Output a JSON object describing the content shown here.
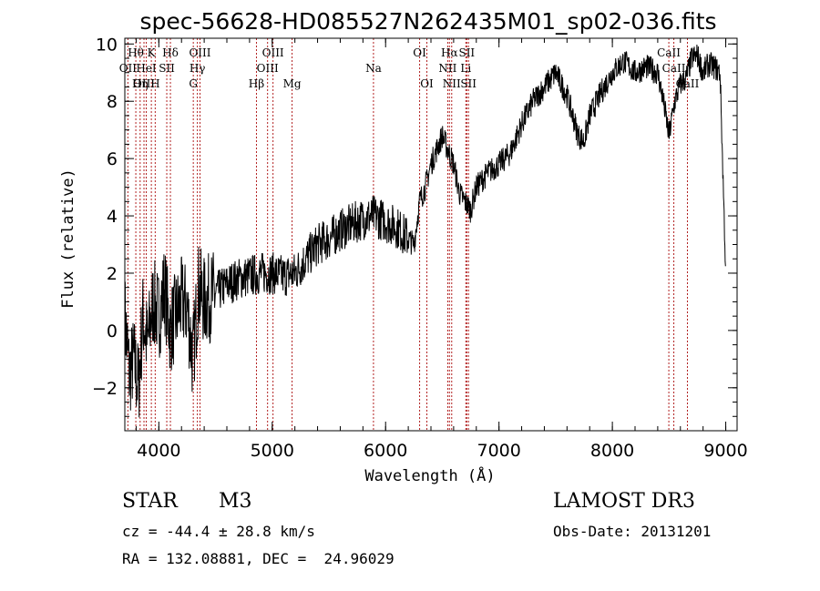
{
  "chart_data": {
    "type": "line",
    "title": "spec-56628-HD085527N262435M01_sp02-036.fits",
    "xlabel": "Wavelength (Å)",
    "ylabel": "Flux (relative)",
    "xlim": [
      3700,
      9100
    ],
    "ylim": [
      -3.5,
      10.2
    ],
    "xticks": [
      4000,
      5000,
      6000,
      7000,
      8000,
      9000
    ],
    "yticks": [
      -2,
      0,
      2,
      4,
      6,
      8,
      10
    ],
    "grid": false,
    "series": [
      {
        "x": [
          3700,
          3740,
          3780,
          3820,
          3860,
          3900,
          3950,
          4000,
          4050,
          4100,
          4150,
          4200,
          4250,
          4300,
          4350,
          4400,
          4500,
          4600,
          4700,
          4800,
          4900,
          5000,
          5100,
          5200,
          5300,
          5400,
          5500,
          5600,
          5700,
          5800,
          5900,
          6000,
          6100,
          6200,
          6250,
          6300,
          6350,
          6400,
          6450,
          6500,
          6550,
          6600,
          6650,
          6700,
          6750,
          6800,
          6900,
          7000,
          7100,
          7200,
          7300,
          7400,
          7500,
          7600,
          7650,
          7700,
          7750,
          7800,
          7900,
          8000,
          8100,
          8200,
          8300,
          8400,
          8450,
          8500,
          8550,
          8600,
          8650,
          8700,
          8750,
          8800,
          8850,
          8900,
          8950,
          9000
        ],
        "y": [
          0.5,
          -1.5,
          -1.0,
          -2.0,
          0.5,
          -0.5,
          1.0,
          0.5,
          1.5,
          0.0,
          0.5,
          1.0,
          0.8,
          -1.0,
          1.5,
          1.0,
          1.3,
          1.6,
          1.8,
          1.9,
          2.0,
          2.0,
          1.9,
          2.0,
          2.5,
          3.0,
          3.2,
          3.5,
          3.7,
          3.9,
          4.0,
          3.8,
          3.6,
          3.2,
          3.0,
          4.5,
          5.0,
          5.8,
          6.3,
          6.8,
          6.3,
          5.8,
          4.8,
          4.5,
          4.2,
          5.0,
          5.5,
          5.8,
          6.2,
          7.2,
          8.0,
          8.5,
          9.0,
          8.2,
          7.5,
          6.8,
          6.6,
          7.5,
          8.3,
          9.0,
          9.4,
          9.0,
          9.2,
          9.0,
          8.0,
          6.8,
          8.0,
          8.6,
          8.8,
          9.5,
          9.6,
          9.0,
          9.3,
          9.2,
          9.0,
          2.0
        ]
      }
    ],
    "line_labels": [
      {
        "text": "Hθ",
        "x": 3797,
        "row": 0
      },
      {
        "text": "K",
        "x": 3934,
        "row": 0
      },
      {
        "text": "Hδ",
        "x": 4102,
        "row": 0
      },
      {
        "text": "OIII",
        "x": 4363,
        "row": 0
      },
      {
        "text": "OIII",
        "x": 5007,
        "row": 0
      },
      {
        "text": "OI",
        "x": 6300,
        "row": 0
      },
      {
        "text": "Hα",
        "x": 6563,
        "row": 0
      },
      {
        "text": "SII",
        "x": 6716,
        "row": 0
      },
      {
        "text": "CaII",
        "x": 8498,
        "row": 0
      },
      {
        "text": "OII",
        "x": 3727,
        "row": 1
      },
      {
        "text": "HeI",
        "x": 3889,
        "row": 1
      },
      {
        "text": "SII",
        "x": 4070,
        "row": 1
      },
      {
        "text": "Hγ",
        "x": 4340,
        "row": 1
      },
      {
        "text": "OIII",
        "x": 4959,
        "row": 1
      },
      {
        "text": "Na",
        "x": 5893,
        "row": 1
      },
      {
        "text": "NII",
        "x": 6548,
        "row": 1
      },
      {
        "text": "Li",
        "x": 6708,
        "row": 1
      },
      {
        "text": "CaII",
        "x": 8542,
        "row": 1
      },
      {
        "text": "OIII",
        "x": 3869,
        "row": 2
      },
      {
        "text": "Hη",
        "x": 3835,
        "row": 2
      },
      {
        "text": "H",
        "x": 3968,
        "row": 2
      },
      {
        "text": "G",
        "x": 4304,
        "row": 2
      },
      {
        "text": "Hβ",
        "x": 4861,
        "row": 2
      },
      {
        "text": "Mg",
        "x": 5175,
        "row": 2
      },
      {
        "text": "OI",
        "x": 6364,
        "row": 2
      },
      {
        "text": "NII",
        "x": 6583,
        "row": 2
      },
      {
        "text": "SII",
        "x": 6731,
        "row": 2
      },
      {
        "text": "CaII",
        "x": 8662,
        "row": 2
      }
    ],
    "line_marks": [
      3727,
      3797,
      3835,
      3869,
      3889,
      3934,
      3968,
      4070,
      4102,
      4304,
      4340,
      4363,
      4861,
      4959,
      5007,
      5175,
      5893,
      6300,
      6364,
      6548,
      6563,
      6583,
      6708,
      6716,
      6731,
      8498,
      8542,
      8662
    ]
  },
  "info": {
    "object_class": "STAR",
    "subclass": "M3",
    "survey": "LAMOST DR3",
    "cz": "cz = -44.4 ± 28.8 km/s",
    "obs_date": "Obs-Date: 20131201",
    "radec": "RA = 132.08881, DEC =  24.96029"
  }
}
